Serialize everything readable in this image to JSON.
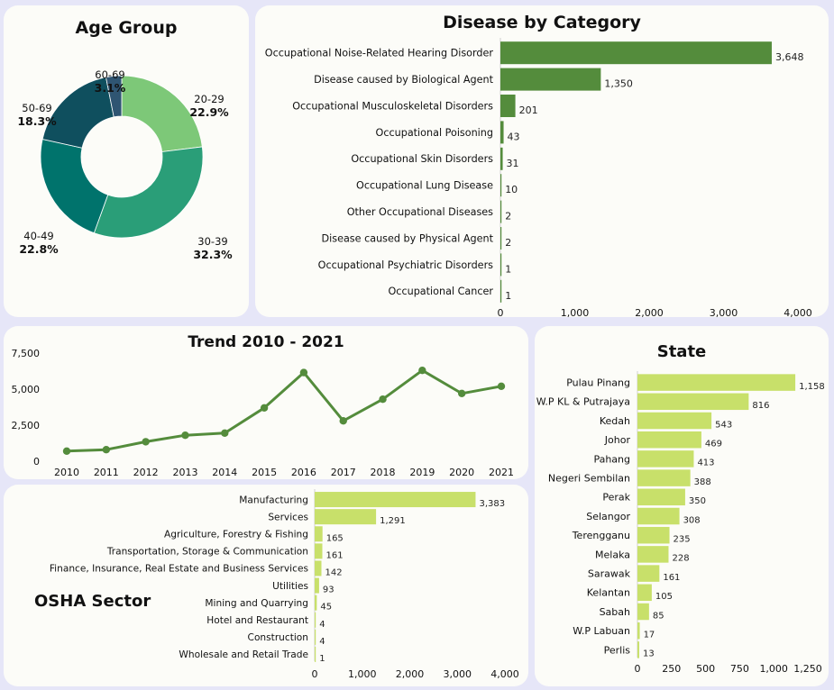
{
  "titles": {
    "age": "Age Group",
    "disease": "Disease by Category",
    "trend": "Trend 2010 - 2021",
    "state": "State",
    "sector": "OSHA Sector"
  },
  "colors": {
    "page_bg": "#e6e6f8",
    "panel_bg": "#fcfcf8",
    "disease_bar": "#548c3c",
    "trend_line": "#548c3c",
    "light_bar": "#c8e06a",
    "donut": [
      "#7dc878",
      "#2a9e78",
      "#00736c",
      "#0f4f5e",
      "#2f5572"
    ]
  },
  "chart_data": [
    {
      "id": "age",
      "type": "pie",
      "title": "Age Group",
      "categories": [
        "20-29",
        "30-39",
        "40-49",
        "50-69",
        "60-69"
      ],
      "values": [
        22.9,
        32.3,
        22.8,
        18.3,
        3.1
      ],
      "labels": [
        "22.9%",
        "32.3%",
        "22.8%",
        "18.3%",
        "3.1%"
      ]
    },
    {
      "id": "disease",
      "type": "bar",
      "orientation": "horizontal",
      "title": "Disease by Category",
      "categories": [
        "Occupational Noise-Related Hearing Disorder",
        "Disease caused by Biological Agent",
        "Occupational Musculoskeletal Disorders",
        "Occupational Poisoning",
        "Occupational Skin Disorders",
        "Occupational Lung Disease",
        "Other Occupational Diseases",
        "Disease caused by Physical Agent",
        "Occupational Psychiatric Disorders",
        "Occupational Cancer"
      ],
      "values": [
        3648,
        1350,
        201,
        43,
        31,
        10,
        2,
        2,
        1,
        1
      ],
      "value_labels": [
        "3,648",
        "1,350",
        "201",
        "43",
        "31",
        "10",
        "2",
        "2",
        "1",
        "1"
      ],
      "xlim": [
        0,
        4000
      ],
      "xticks": [
        "0",
        "1,000",
        "2,000",
        "3,000",
        "4,000"
      ]
    },
    {
      "id": "trend",
      "type": "line",
      "title": "Trend 2010 - 2021",
      "x": [
        "2010",
        "2011",
        "2012",
        "2013",
        "2014",
        "2015",
        "2016",
        "2017",
        "2018",
        "2019",
        "2020",
        "2021"
      ],
      "values": [
        700,
        800,
        1350,
        1800,
        1950,
        3700,
        6150,
        2800,
        4300,
        6300,
        4700,
        5200
      ],
      "ylim": [
        0,
        7500
      ],
      "yticks": [
        "0",
        "2,500",
        "5,000",
        "7,500"
      ]
    },
    {
      "id": "state",
      "type": "bar",
      "orientation": "horizontal",
      "title": "State",
      "categories": [
        "Pulau Pinang",
        "W.P KL & Putrajaya",
        "Kedah",
        "Johor",
        "Pahang",
        "Negeri Sembilan",
        "Perak",
        "Selangor",
        "Terengganu",
        "Melaka",
        "Sarawak",
        "Kelantan",
        "Sabah",
        "W.P Labuan",
        "Perlis"
      ],
      "values": [
        1158,
        816,
        543,
        469,
        413,
        388,
        350,
        308,
        235,
        228,
        161,
        105,
        85,
        17,
        13
      ],
      "value_labels": [
        "1,158",
        "816",
        "543",
        "469",
        "413",
        "388",
        "350",
        "308",
        "235",
        "228",
        "161",
        "105",
        "85",
        "17",
        "13"
      ],
      "xlim": [
        0,
        1250
      ],
      "xticks": [
        "0",
        "250",
        "500",
        "750",
        "1,000",
        "1,250"
      ]
    },
    {
      "id": "sector",
      "type": "bar",
      "orientation": "horizontal",
      "title": "OSHA Sector",
      "categories": [
        "Manufacturing",
        "Services",
        "Agriculture, Forestry & Fishing",
        "Transportation, Storage & Communication",
        "Finance, Insurance, Real Estate and Business Services",
        "Utilities",
        "Mining and Quarrying",
        "Hotel and Restaurant",
        "Construction",
        "Wholesale and Retail Trade"
      ],
      "values": [
        3383,
        1291,
        165,
        161,
        142,
        93,
        45,
        4,
        4,
        1
      ],
      "value_labels": [
        "3,383",
        "1,291",
        "165",
        "161",
        "142",
        "93",
        "45",
        "4",
        "4",
        "1"
      ],
      "xlim": [
        0,
        4000
      ],
      "xticks": [
        "0",
        "1,000",
        "2,000",
        "3,000",
        "4,000"
      ]
    }
  ]
}
